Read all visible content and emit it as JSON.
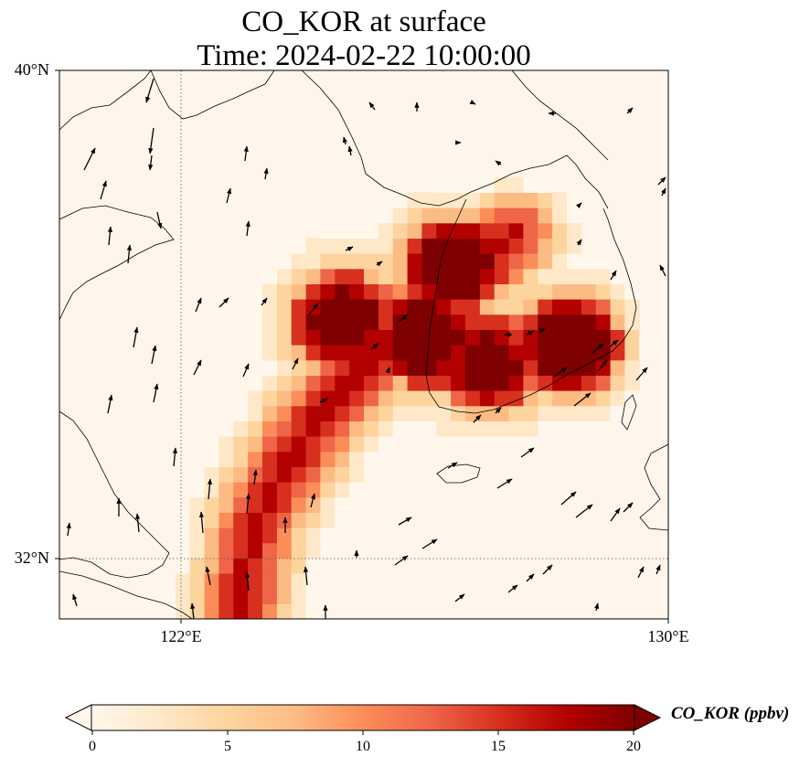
{
  "title": {
    "line1": "CO_KOR at surface",
    "line2": "Time: 2024-02-22 10:00:00"
  },
  "map": {
    "lon_range": [
      119.5,
      130
    ],
    "lat_range": [
      31,
      40
    ],
    "lat_ticks": [
      {
        "value": 40,
        "label": "40°N"
      },
      {
        "value": 32,
        "label": "32°N"
      }
    ],
    "lon_ticks": [
      {
        "value": 122,
        "label": "122°E"
      },
      {
        "value": 130,
        "label": "130°E"
      }
    ],
    "gridlines": "dotted",
    "background_color": "#fff5eb",
    "coastline_color": "#000000",
    "wind_vectors": "black arrows, predominantly from the north and north-west over land, from the south-west over the southern sea"
  },
  "plume": {
    "max_ppbv": 20,
    "cores": [
      {
        "name": "",
        "lon": 125.8,
        "lat": 35.6,
        "value": 20
      },
      {
        "name": "",
        "lon": 126.3,
        "lat": 36.8,
        "value": 20
      },
      {
        "name": "",
        "lon": 124.4,
        "lat": 35.9,
        "value": 19
      },
      {
        "name": "",
        "lon": 126.9,
        "lat": 35.2,
        "value": 18
      },
      {
        "name": "",
        "lon": 128.3,
        "lat": 35.5,
        "value": 20
      }
    ]
  },
  "colorbar": {
    "label": "CO_KOR (ppbv)",
    "min": 0,
    "max": 20,
    "extend": "both",
    "colormap": "OrRd",
    "colors": [
      "#fff7ec",
      "#fee8c8",
      "#fdd49e",
      "#fdbb84",
      "#fc8d59",
      "#ef6548",
      "#d7301f",
      "#b30000",
      "#7f0000"
    ],
    "ticks": [
      {
        "value": 0,
        "label": "0"
      },
      {
        "value": 5,
        "label": "5"
      },
      {
        "value": 10,
        "label": "10"
      },
      {
        "value": 15,
        "label": "15"
      },
      {
        "value": 20,
        "label": "20"
      }
    ]
  }
}
